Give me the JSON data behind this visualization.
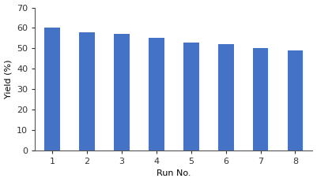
{
  "categories": [
    1,
    2,
    3,
    4,
    5,
    6,
    7,
    8
  ],
  "values": [
    60,
    58,
    57,
    55,
    53,
    52,
    50,
    49
  ],
  "bar_color": "#4472C4",
  "xlabel": "Run No.",
  "ylabel": "Yield (%)",
  "ylim": [
    0,
    70
  ],
  "yticks": [
    0,
    10,
    20,
    30,
    40,
    50,
    60,
    70
  ],
  "title": "",
  "bar_width": 0.45,
  "background_color": "#ffffff",
  "figsize": [
    4.01,
    2.31
  ],
  "dpi": 100
}
